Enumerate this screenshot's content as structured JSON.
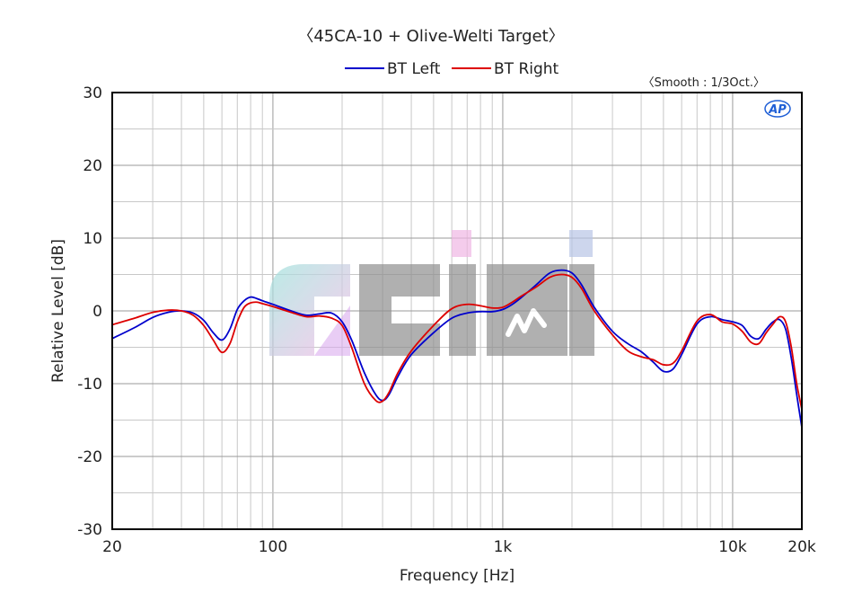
{
  "chart_data": {
    "type": "line",
    "title": "〈45CA-10 + Olive-Welti Target〉",
    "annotation": "〈Smooth : 1/3Oct.〉",
    "xlabel": "Frequency [Hz]",
    "ylabel": "Relative Level [dB]",
    "xscale": "log",
    "xlim": [
      20,
      20000
    ],
    "ylim": [
      -30,
      30
    ],
    "grid": true,
    "legend_position": "top",
    "x_ticks": [
      {
        "value": 20,
        "label": "20"
      },
      {
        "value": 100,
        "label": "100"
      },
      {
        "value": 1000,
        "label": "1k"
      },
      {
        "value": 10000,
        "label": "10k"
      },
      {
        "value": 20000,
        "label": "20k"
      }
    ],
    "y_ticks": [
      30,
      20,
      10,
      0,
      -10,
      -20,
      -30
    ],
    "series": [
      {
        "name": "BT Left",
        "color": "#0000cc",
        "x": [
          20,
          25,
          30,
          35,
          40,
          45,
          50,
          55,
          60,
          65,
          70,
          75,
          80,
          85,
          90,
          100,
          120,
          140,
          160,
          180,
          200,
          220,
          250,
          280,
          300,
          320,
          350,
          400,
          500,
          600,
          700,
          800,
          900,
          1000,
          1100,
          1200,
          1400,
          1600,
          1800,
          2000,
          2200,
          2500,
          3000,
          3500,
          4000,
          4500,
          5000,
          5500,
          6000,
          7000,
          8000,
          9000,
          10000,
          11000,
          12000,
          13000,
          14000,
          15000,
          16000,
          17000,
          18000,
          19000,
          20000
        ],
        "y": [
          -3.8,
          -2.3,
          -0.9,
          -0.2,
          0.0,
          -0.3,
          -1.3,
          -3.0,
          -4.0,
          -2.5,
          0.2,
          1.4,
          1.9,
          1.7,
          1.4,
          0.9,
          0.0,
          -0.6,
          -0.4,
          -0.3,
          -1.5,
          -4.0,
          -8.5,
          -11.5,
          -12.3,
          -11.5,
          -9.0,
          -6.0,
          -3.0,
          -1.0,
          -0.3,
          -0.1,
          -0.1,
          0.2,
          0.9,
          1.8,
          3.6,
          5.2,
          5.6,
          5.2,
          3.6,
          0.5,
          -2.8,
          -4.5,
          -5.6,
          -7.0,
          -8.3,
          -8.0,
          -6.0,
          -1.8,
          -0.8,
          -1.2,
          -1.5,
          -2.0,
          -3.5,
          -3.8,
          -2.5,
          -1.5,
          -1.2,
          -2.5,
          -6.5,
          -11.5,
          -16.0
        ]
      },
      {
        "name": "BT Right",
        "color": "#dd0000",
        "x": [
          20,
          25,
          30,
          35,
          40,
          45,
          50,
          55,
          60,
          65,
          70,
          75,
          80,
          85,
          90,
          100,
          120,
          140,
          160,
          180,
          200,
          220,
          250,
          280,
          300,
          320,
          350,
          400,
          500,
          600,
          700,
          800,
          900,
          1000,
          1100,
          1200,
          1400,
          1600,
          1800,
          2000,
          2200,
          2500,
          3000,
          3500,
          4000,
          4500,
          5000,
          5500,
          6000,
          7000,
          8000,
          9000,
          10000,
          11000,
          12000,
          13000,
          14000,
          15000,
          16000,
          17000,
          18000,
          19000,
          20000
        ],
        "y": [
          -1.9,
          -1.0,
          -0.2,
          0.1,
          0.0,
          -0.6,
          -2.0,
          -4.0,
          -5.7,
          -4.5,
          -1.5,
          0.5,
          1.1,
          1.2,
          1.0,
          0.6,
          -0.2,
          -0.8,
          -0.7,
          -1.0,
          -2.0,
          -5.0,
          -10.0,
          -12.3,
          -12.4,
          -11.2,
          -8.5,
          -5.5,
          -2.0,
          0.3,
          0.9,
          0.7,
          0.4,
          0.5,
          1.2,
          2.0,
          3.3,
          4.6,
          5.0,
          4.6,
          3.1,
          0.0,
          -3.3,
          -5.5,
          -6.3,
          -6.7,
          -7.4,
          -7.2,
          -5.5,
          -1.4,
          -0.5,
          -1.5,
          -1.8,
          -2.8,
          -4.3,
          -4.5,
          -3.0,
          -1.8,
          -0.8,
          -1.5,
          -5.0,
          -10.0,
          -13.5
        ]
      }
    ]
  },
  "logo": {
    "text": "AP",
    "color": "#1f5fd6"
  },
  "watermark": {
    "text": "ACINI"
  }
}
